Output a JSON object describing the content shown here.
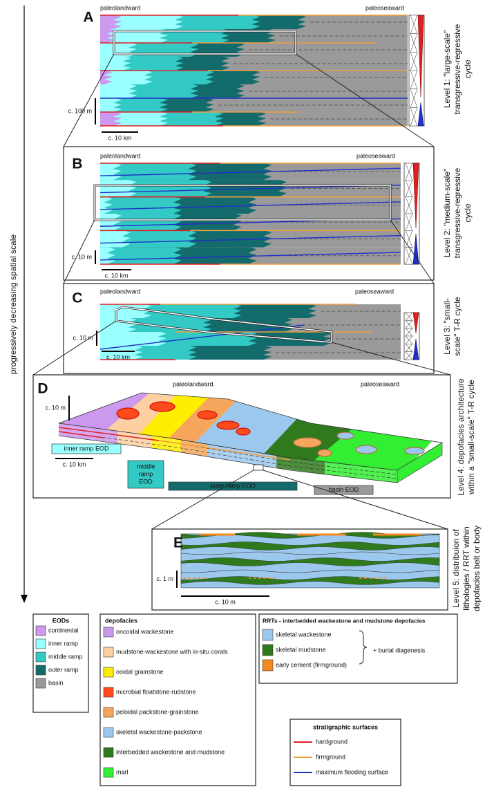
{
  "axis_label": "progressively decreasing spatial scale",
  "panels": {
    "A": {
      "label": "A",
      "landward": "paleolandward",
      "seaward": "paleoseaward",
      "vertical_scale": "c. 100 m",
      "horizontal_scale": "c. 10 km",
      "level": [
        "Level 1: \"large-scale\"",
        "transgressive-regressive",
        "cycle"
      ]
    },
    "B": {
      "label": "B",
      "landward": "paleolandward",
      "seaward": "paleoseaward",
      "vertical_scale": "c. 10 m",
      "horizontal_scale": "c. 10 km",
      "level": [
        "Level 2: \"medium-scale\"",
        "transgressive-regressive",
        "cycle"
      ]
    },
    "C": {
      "label": "C",
      "landward": "paleolandward",
      "seaward": "paleoseaward",
      "vertical_scale": "c. 10 m",
      "horizontal_scale": "c. 10 km",
      "level": [
        "Level 3: \"small-",
        "scale\" T-R cycle"
      ]
    },
    "D": {
      "label": "D",
      "landward": "paleolandward",
      "seaward": "paleoseaward",
      "vertical_scale": "c. 10 m",
      "horizontal_scale": "c. 10 km",
      "eods": [
        [
          "inner ramp EOD"
        ],
        [
          "middle",
          "ramp",
          "EOD"
        ],
        [
          "outer ramp EOD"
        ],
        [
          "basin EOD"
        ]
      ],
      "level": [
        "Level 4: depofacies architecture",
        "within a \"small-scale\" T-R cycle"
      ]
    },
    "E": {
      "label": "E",
      "vertical_scale": "c. 1 m",
      "horizontal_scale": "c. 10 m",
      "level": [
        "Level 5: distribuion of",
        "lithologies / RRT within",
        "depofacies belt or body"
      ]
    }
  },
  "legend": {
    "eods": {
      "title": "EODs",
      "items": [
        {
          "label": "continental",
          "color": "#cc99ee"
        },
        {
          "label": "inner ramp",
          "color": "#99ffff"
        },
        {
          "label": "middle ramp",
          "color": "#33c9c4"
        },
        {
          "label": "outer ramp",
          "color": "#146b6b"
        },
        {
          "label": "basin",
          "color": "#9a9a9a"
        }
      ]
    },
    "depofacies": {
      "title": "depofacies",
      "items": [
        {
          "label": "oncoidal wackestone",
          "color": "#cc99ee"
        },
        {
          "label": "mudstone-wackestone with in-situ corals",
          "color": "#fdd0a2"
        },
        {
          "label": "ooidal grainstone",
          "color": "#ffee00"
        },
        {
          "label": "microbial floatstone-rudstone",
          "color": "#ff4a1a"
        },
        {
          "label": "peloidal packstone-grainstone",
          "color": "#f6a65c"
        },
        {
          "label": "skeletal wackestone-packstone",
          "color": "#9dc8ee"
        },
        {
          "label": "interbedded wackestone and mudstone",
          "color": "#2f7a1c"
        },
        {
          "label": "marl",
          "color": "#33ee33"
        }
      ]
    },
    "rrts": {
      "title": "RRTs - interbedded wackestone and mudstone depofacies",
      "note": "+ burial diagenesis",
      "items": [
        {
          "label": "skeletal wackestone",
          "color": "#9dc8ee"
        },
        {
          "label": "skeletal mudstone",
          "color": "#2f7a1c"
        },
        {
          "label": "early cement (firmground)",
          "color": "#f58a1f"
        }
      ]
    },
    "surfaces": {
      "title": "stratigraphic surfaces",
      "items": [
        {
          "label": "hardground",
          "color": "#e02020"
        },
        {
          "label": "firmground",
          "color": "#f0a040"
        },
        {
          "label": "maximum flooding surface",
          "color": "#2030c8"
        }
      ]
    }
  }
}
